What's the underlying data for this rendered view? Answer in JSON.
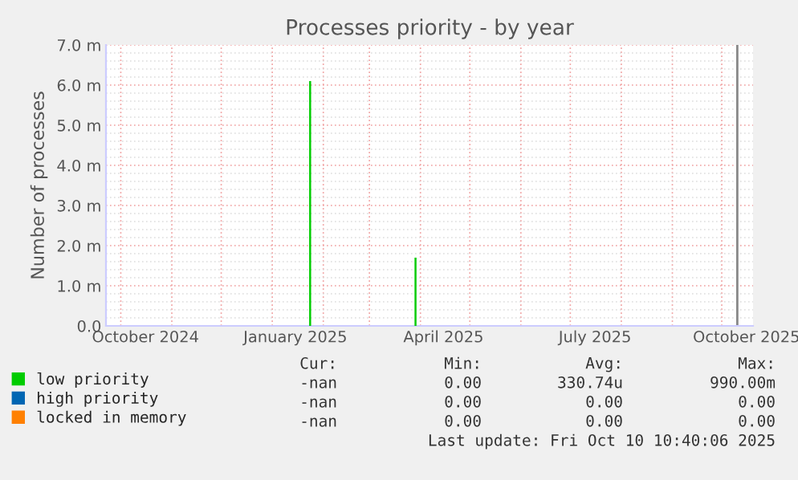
{
  "chart_data": {
    "type": "bar",
    "title": "Processes priority - by year",
    "ylabel": "Number of processes",
    "series": [
      {
        "name": "low priority",
        "color": "#00cc00",
        "x": [
          "2025-01-24",
          "2025-03-29"
        ],
        "values": [
          6.1,
          1.7
        ]
      },
      {
        "name": "high priority",
        "color": "#0066b3"
      },
      {
        "name": "locked in memory",
        "color": "#ff8000"
      }
    ],
    "xlim": [
      "2024-09-22",
      "2025-10-20"
    ],
    "xticks": [
      {
        "value": "2024-10-16",
        "label": "October 2024"
      },
      {
        "value": "2025-01-15",
        "label": "January 2025"
      },
      {
        "value": "2025-04-15",
        "label": "April 2025"
      },
      {
        "value": "2025-07-16",
        "label": "July 2025"
      },
      {
        "value": "2025-10-16",
        "label": "October 2025"
      }
    ],
    "ylim": [
      0,
      7
    ],
    "yticks": [
      {
        "value": 0,
        "label": "0.0"
      },
      {
        "value": 1,
        "label": "1.0 m"
      },
      {
        "value": 2,
        "label": "2.0 m"
      },
      {
        "value": 3,
        "label": "3.0 m"
      },
      {
        "value": 4,
        "label": "4.0 m"
      },
      {
        "value": 5,
        "label": "5.0 m"
      },
      {
        "value": 6,
        "label": "6.0 m"
      },
      {
        "value": 7,
        "label": "7.0 m"
      }
    ],
    "ref_lines": [
      {
        "axis": "x",
        "value": "2025-10-10T10:40",
        "color": "#888888"
      }
    ],
    "grid": true,
    "legend": "bottom left",
    "annotations": [
      "Cur:",
      "Min:",
      "Avg:",
      "Max:",
      "-nan",
      "0.00",
      "330.74u",
      "990.00m",
      "-nan",
      "0.00",
      "0.00",
      "0.00",
      "-nan",
      "0.00",
      "0.00",
      "0.00",
      "Last update: Fri Oct 10 10:40:06 2025"
    ]
  }
}
